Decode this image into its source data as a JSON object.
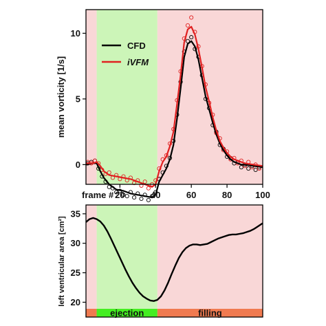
{
  "chart_data": [
    {
      "type": "line",
      "ylabel": "mean vorticity  [1/s]",
      "xlabel_prefix": "frame #",
      "xlim": [
        1,
        100
      ],
      "ylim": [
        -1.5,
        11.8
      ],
      "xticks": [
        "20",
        "40",
        "60",
        "80",
        "100"
      ],
      "yticks": [
        "0",
        "5",
        "10"
      ],
      "phases": [
        {
          "name": "pre",
          "x": [
            1,
            7
          ],
          "color": "#f9d7d7"
        },
        {
          "name": "ejection",
          "x": [
            7,
            41
          ],
          "color": "#ccf5b8"
        },
        {
          "name": "filling",
          "x": [
            41,
            100
          ],
          "color": "#f9d7d7"
        }
      ],
      "legend": {
        "placement": "top-left",
        "entries": [
          "CFD",
          "iVFM"
        ]
      },
      "series": [
        {
          "name": "CFD",
          "color": "#000000",
          "x": [
            1,
            5,
            7,
            9,
            11,
            14,
            18,
            22,
            26,
            30,
            34,
            38,
            40,
            42,
            44,
            46,
            48,
            50,
            52,
            54,
            56,
            58,
            60,
            62,
            64,
            66,
            68,
            70,
            72,
            74,
            76,
            78,
            80,
            82,
            84,
            86,
            88,
            90,
            95,
            100
          ],
          "y": [
            0,
            0.1,
            0.1,
            -0.5,
            -1.0,
            -1.5,
            -1.9,
            -2.0,
            -2.2,
            -2.3,
            -2.4,
            -2.5,
            -2.3,
            -1.3,
            -0.8,
            -0.3,
            0.4,
            1.5,
            3.5,
            5.8,
            8.2,
            9.2,
            9.4,
            9.0,
            8.0,
            6.6,
            5.2,
            4.2,
            3.2,
            2.3,
            1.6,
            1.1,
            0.7,
            0.4,
            0.2,
            0.1,
            0,
            0,
            -0.1,
            -0.2
          ]
        },
        {
          "name": "iVFM",
          "color": "#e02020",
          "x": [
            1,
            5,
            7,
            9,
            11,
            14,
            18,
            22,
            26,
            30,
            34,
            38,
            40,
            42,
            44,
            46,
            48,
            50,
            52,
            54,
            56,
            58,
            60,
            62,
            64,
            66,
            68,
            70,
            72,
            74,
            76,
            78,
            80,
            82,
            84,
            86,
            88,
            90,
            95,
            100
          ],
          "y": [
            0.1,
            0.1,
            0.2,
            -0.1,
            -0.5,
            -0.8,
            -0.9,
            -1.0,
            -1.1,
            -1.3,
            -1.5,
            -1.7,
            -1.5,
            -0.5,
            0.2,
            0.6,
            1.4,
            2.5,
            4.6,
            6.8,
            9.3,
            10.3,
            10.5,
            9.9,
            8.8,
            7.4,
            5.9,
            4.8,
            3.6,
            2.6,
            1.8,
            1.3,
            0.9,
            0.6,
            0.4,
            0.3,
            0.2,
            0.1,
            0,
            -0.1
          ]
        },
        {
          "name": "CFD-points",
          "color": "#000000",
          "x": [
            2,
            4,
            6,
            8,
            10,
            12,
            14,
            16,
            18,
            20,
            22,
            24,
            26,
            28,
            30,
            32,
            34,
            36,
            38,
            40,
            42,
            44,
            46,
            48,
            50,
            52,
            54,
            56,
            58,
            60,
            62,
            64,
            66,
            68,
            70,
            72,
            74,
            76,
            78,
            80,
            82,
            84,
            86,
            88,
            90,
            92,
            94,
            96,
            98
          ],
          "y": [
            0.1,
            0.2,
            0.3,
            -0.3,
            -0.9,
            -1.3,
            -1.7,
            -1.8,
            -2.1,
            -2.0,
            -2.3,
            -2.4,
            -2.1,
            -2.5,
            -2.2,
            -2.6,
            -2.3,
            -2.7,
            -2.4,
            -2.1,
            -1.1,
            -0.6,
            -0.1,
            0.5,
            1.8,
            3.8,
            6.3,
            8.6,
            9.4,
            9.7,
            8.8,
            8.2,
            6.8,
            5.0,
            4.3,
            3.0,
            2.5,
            1.5,
            1.2,
            0.6,
            0.5,
            0.1,
            0.2,
            -0.2,
            0,
            -0.3,
            -0.1,
            -0.4,
            -0.2
          ]
        },
        {
          "name": "iVFM-points",
          "color": "#e02020",
          "x": [
            2,
            4,
            6,
            8,
            10,
            12,
            14,
            16,
            18,
            20,
            22,
            24,
            26,
            28,
            30,
            32,
            34,
            36,
            38,
            40,
            42,
            44,
            46,
            48,
            50,
            52,
            54,
            56,
            58,
            60,
            62,
            64,
            66,
            68,
            70,
            72,
            74,
            76,
            78,
            80,
            82,
            84,
            86,
            88,
            90,
            92,
            94,
            96,
            98
          ],
          "y": [
            0.2,
            0.1,
            0.3,
            0.1,
            -0.4,
            -0.7,
            -0.6,
            -1.0,
            -0.8,
            -1.1,
            -0.9,
            -1.2,
            -1.0,
            -1.4,
            -1.2,
            -1.6,
            -1.3,
            -1.8,
            -1.5,
            -1.2,
            -0.3,
            0.4,
            0.7,
            1.6,
            2.7,
            4.9,
            7.1,
            9.6,
            10.6,
            11.2,
            10.1,
            9.0,
            7.5,
            6.1,
            4.7,
            3.8,
            2.4,
            2.0,
            1.1,
            1.0,
            0.4,
            0.5,
            0.1,
            0.3,
            -0.1,
            0.2,
            -0.2,
            0,
            -0.3
          ]
        }
      ]
    },
    {
      "type": "line",
      "ylabel": "left ventricular area  [cm²]",
      "xlim": [
        1,
        100
      ],
      "ylim": [
        19,
        36.5
      ],
      "yticks": [
        "20",
        "25",
        "30",
        "35"
      ],
      "phase_bar": [
        {
          "label": "",
          "x": [
            1,
            7
          ],
          "color": "#f07a50"
        },
        {
          "label": "ejection",
          "x": [
            7,
            41
          ],
          "color": "#44ee22"
        },
        {
          "label": "filling",
          "x": [
            41,
            100
          ],
          "color": "#f07a50"
        }
      ],
      "phases": [
        {
          "name": "pre",
          "x": [
            1,
            7
          ],
          "color": "#f9d7d7"
        },
        {
          "name": "ejection",
          "x": [
            7,
            41
          ],
          "color": "#ccf5b8"
        },
        {
          "name": "filling",
          "x": [
            41,
            100
          ],
          "color": "#f9d7d7"
        }
      ],
      "series": [
        {
          "name": "",
          "color": "#000000",
          "x": [
            1,
            3,
            5,
            7,
            9,
            11,
            13,
            15,
            17,
            19,
            21,
            23,
            25,
            27,
            29,
            31,
            33,
            35,
            37,
            39,
            41,
            43,
            45,
            47,
            49,
            51,
            53,
            55,
            57,
            59,
            61,
            63,
            65,
            67,
            69,
            71,
            73,
            75,
            77,
            79,
            81,
            83,
            85,
            87,
            89,
            91,
            93,
            95,
            97,
            99,
            100
          ],
          "y": [
            33.6,
            34.1,
            34.3,
            34.1,
            33.7,
            33.0,
            32.0,
            30.8,
            29.5,
            28.2,
            26.9,
            25.6,
            24.4,
            23.3,
            22.4,
            21.6,
            21.0,
            20.6,
            20.3,
            20.2,
            20.4,
            21.0,
            22.0,
            23.3,
            24.8,
            26.2,
            27.5,
            28.5,
            29.2,
            29.6,
            29.8,
            29.8,
            29.7,
            29.8,
            29.9,
            30.2,
            30.5,
            30.8,
            31.0,
            31.2,
            31.4,
            31.5,
            31.5,
            31.6,
            31.7,
            31.9,
            32.1,
            32.4,
            32.8,
            33.2,
            33.4
          ]
        }
      ]
    }
  ]
}
